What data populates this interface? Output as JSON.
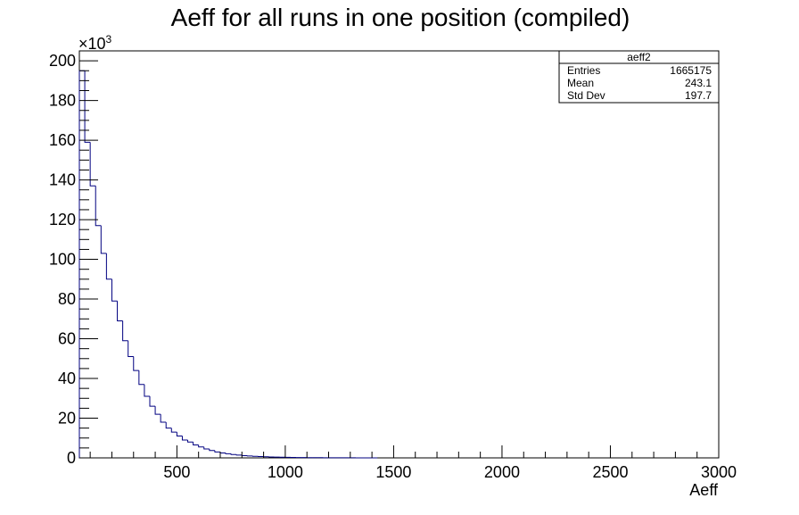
{
  "chart_data": {
    "type": "histogram",
    "title": "Aeff for all runs in one position (compiled)",
    "xlabel": "Aeff",
    "ylabel": "",
    "y_multiplier_label": "×10",
    "y_multiplier_exponent": "3",
    "xlim": [
      50,
      3000
    ],
    "ylim": [
      0,
      205
    ],
    "x_ticks": [
      500,
      1000,
      1500,
      2000,
      2500,
      3000
    ],
    "y_ticks": [
      0,
      20,
      40,
      60,
      80,
      100,
      120,
      140,
      160,
      180,
      200
    ],
    "bin_width": 25,
    "bins_x_start": [
      50,
      75,
      100,
      125,
      150,
      175,
      200,
      225,
      250,
      275,
      300,
      325,
      350,
      375,
      400,
      425,
      450,
      475,
      500,
      525,
      550,
      575,
      600,
      625,
      650,
      675,
      700,
      725,
      750,
      775,
      800,
      825,
      850,
      875,
      900,
      925,
      950,
      975,
      1000,
      1025,
      1050,
      1075,
      1100,
      1125,
      1150,
      1175,
      1200,
      1225,
      1250,
      1275,
      1300,
      1325,
      1350,
      1375,
      1400
    ],
    "values": [
      195,
      159,
      137,
      117,
      103,
      90,
      79,
      69,
      59,
      51,
      44,
      37,
      31,
      26,
      22,
      18,
      15,
      13,
      11,
      9,
      8,
      6.5,
      5.5,
      4.5,
      3.7,
      3.0,
      2.5,
      2.1,
      1.7,
      1.4,
      1.15,
      0.95,
      0.8,
      0.65,
      0.55,
      0.45,
      0.38,
      0.32,
      0.27,
      0.23,
      0.19,
      0.16,
      0.13,
      0.11,
      0.09,
      0.08,
      0.07,
      0.06,
      0.05,
      0.04,
      0.03,
      0.02,
      0.015,
      0.01,
      0.0
    ],
    "line_color": "#000080",
    "grid": false,
    "legend": {
      "placement": "top-right",
      "name": "aeff2",
      "rows": [
        {
          "label": "Entries",
          "value": "1665175"
        },
        {
          "label": "Mean",
          "value": "243.1"
        },
        {
          "label": "Std Dev",
          "value": "197.7"
        }
      ]
    }
  }
}
